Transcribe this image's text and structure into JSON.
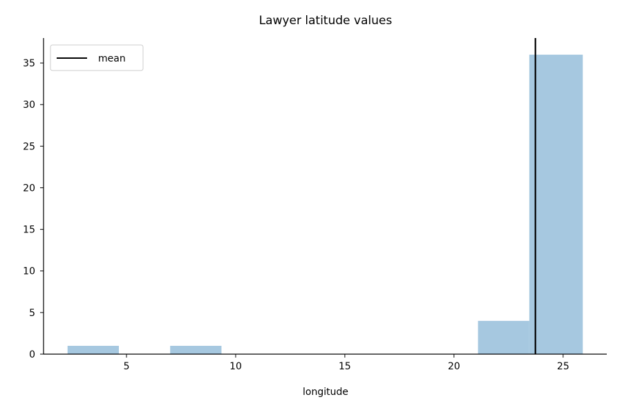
{
  "chart_data": {
    "type": "bar",
    "title": "Lawyer latitude values",
    "xlabel": "longitude",
    "ylabel": "",
    "xlim": [
      1.2,
      27.0
    ],
    "ylim": [
      0,
      38
    ],
    "grid": false,
    "legend_placement": "upper-left",
    "bar_color": "#a6c8e0",
    "bins": [
      {
        "x0": 2.3,
        "x1": 4.65,
        "count": 1
      },
      {
        "x0": 4.65,
        "x1": 7.0,
        "count": 0
      },
      {
        "x0": 7.0,
        "x1": 9.35,
        "count": 1
      },
      {
        "x0": 9.35,
        "x1": 11.7,
        "count": 0
      },
      {
        "x0": 11.7,
        "x1": 14.05,
        "count": 0
      },
      {
        "x0": 14.05,
        "x1": 16.4,
        "count": 0
      },
      {
        "x0": 16.4,
        "x1": 18.75,
        "count": 0
      },
      {
        "x0": 18.75,
        "x1": 21.1,
        "count": 0
      },
      {
        "x0": 21.1,
        "x1": 23.45,
        "count": 4
      },
      {
        "x0": 23.45,
        "x1": 25.9,
        "count": 36
      }
    ],
    "mean": 23.73,
    "mean_color": "#000000",
    "legend": [
      {
        "label": "mean",
        "color": "#000000"
      }
    ],
    "xticks": [
      5,
      10,
      15,
      20,
      25
    ],
    "yticks": [
      0,
      5,
      10,
      15,
      20,
      25,
      30,
      35
    ]
  }
}
